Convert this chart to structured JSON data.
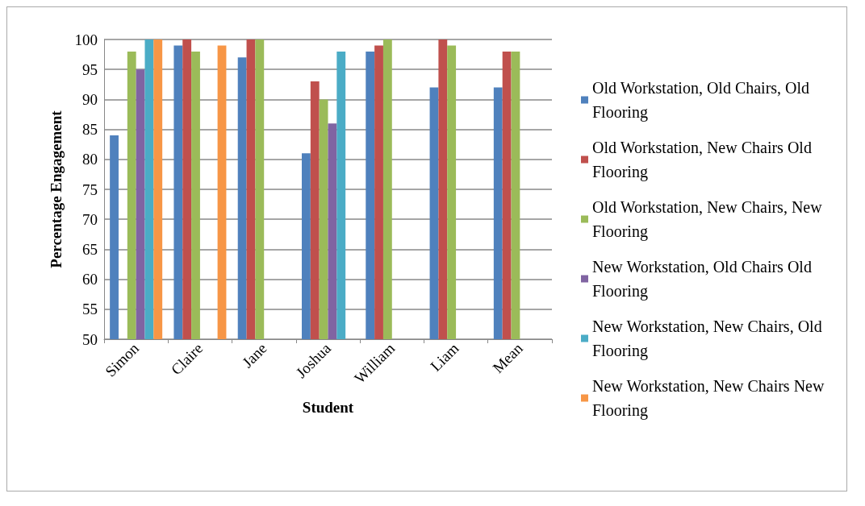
{
  "chart_data": {
    "type": "bar",
    "xlabel": "Student",
    "ylabel": "Percentage Engagement",
    "categories": [
      "Simon",
      "Claire",
      "Jane",
      "Joshua",
      "William",
      "Liam",
      "Mean"
    ],
    "series": [
      {
        "name": "Old Workstation, Old Chairs, Old Flooring",
        "color": "#4f81bd",
        "values": [
          84,
          99,
          97,
          81,
          98,
          92,
          92
        ]
      },
      {
        "name": "Old Workstation, New Chairs Old Flooring",
        "color": "#c0504d",
        "values": [
          null,
          100,
          100,
          93,
          99,
          100,
          98
        ]
      },
      {
        "name": "Old Workstation, New Chairs, New Flooring",
        "color": "#9bbb59",
        "values": [
          98,
          98,
          100,
          90,
          100,
          99,
          98
        ]
      },
      {
        "name": "New Workstation, Old Chairs Old Flooring",
        "color": "#8064a2",
        "values": [
          95,
          null,
          null,
          86,
          null,
          null,
          null
        ]
      },
      {
        "name": "New Workstation, New Chairs, Old Flooring",
        "color": "#4bacc6",
        "values": [
          100,
          null,
          null,
          98,
          null,
          null,
          null
        ]
      },
      {
        "name": "New Workstation, New Chairs New Flooring",
        "color": "#f79646",
        "values": [
          100,
          99,
          null,
          null,
          null,
          null,
          null
        ]
      }
    ],
    "ylim": [
      50,
      100
    ],
    "yticks": [
      50,
      55,
      60,
      65,
      70,
      75,
      80,
      85,
      90,
      95,
      100
    ],
    "grid": "y",
    "legend": "right"
  }
}
